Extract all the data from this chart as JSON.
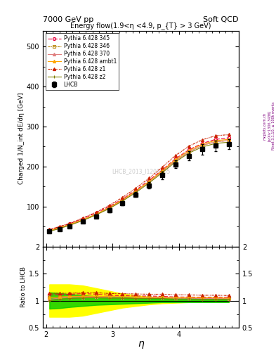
{
  "title_left": "7000 GeV pp",
  "title_right": "Soft QCD",
  "plot_title": "Energy flow(1.9<η <4.9, p_{T} > 3 GeV)",
  "xlabel": "η",
  "ylabel": "Charged 1/N_int dE/dη [GeV]",
  "ylabel_ratio": "Ratio to LHCB",
  "watermark": "LHCB_2013_I1208105",
  "rivet_label": "Rivet 3.1.10, ≥ 100k events",
  "arxiv_label": "[arXiv:1306.3436]",
  "mcplots_label": "mcplots.cern.ch",
  "eta": [
    2.05,
    2.2,
    2.35,
    2.55,
    2.75,
    2.95,
    3.15,
    3.35,
    3.55,
    3.75,
    3.95,
    4.15,
    4.35,
    4.55,
    4.75
  ],
  "lhcb_y": [
    38,
    44,
    51,
    62,
    75,
    91,
    109,
    130,
    153,
    178,
    206,
    227,
    243,
    252,
    256
  ],
  "lhcb_yerr": [
    2,
    2,
    2.5,
    3,
    3.5,
    4.5,
    5.5,
    6.5,
    7.5,
    9,
    10,
    11.5,
    12.5,
    13,
    13
  ],
  "pythia_345_y": [
    42,
    49,
    57,
    70,
    84,
    100,
    119,
    141,
    166,
    192,
    220,
    242,
    258,
    268,
    272
  ],
  "pythia_346_y": [
    40,
    47,
    55,
    67,
    81,
    97,
    116,
    138,
    162,
    188,
    215,
    237,
    253,
    262,
    265
  ],
  "pythia_370_y": [
    39,
    46,
    54,
    66,
    80,
    97,
    116,
    138,
    162,
    188,
    215,
    237,
    253,
    262,
    265
  ],
  "pythia_ambt1_y": [
    40,
    47,
    55,
    67,
    81,
    98,
    117,
    139,
    163,
    190,
    218,
    240,
    256,
    265,
    268
  ],
  "pythia_z1_y": [
    43,
    50,
    58,
    71,
    86,
    103,
    123,
    146,
    171,
    199,
    228,
    251,
    267,
    277,
    280
  ],
  "pythia_z2_y": [
    38,
    45,
    53,
    65,
    79,
    95,
    114,
    135,
    159,
    185,
    212,
    234,
    249,
    258,
    261
  ],
  "color_345": "#e8003d",
  "color_346": "#b8860b",
  "color_370": "#e08080",
  "color_ambt1": "#ffa500",
  "color_z1": "#cc2200",
  "color_z2": "#808000",
  "ylim_main": [
    0,
    540
  ],
  "ylim_ratio": [
    0.5,
    2.0
  ],
  "eta_lim": [
    1.95,
    4.9
  ],
  "yellow_band_low": [
    0.7,
    0.7,
    0.7,
    0.72,
    0.77,
    0.82,
    0.87,
    0.9,
    0.93,
    0.95,
    0.96,
    0.97,
    0.97,
    0.97,
    0.97
  ],
  "yellow_band_high": [
    1.3,
    1.3,
    1.3,
    1.28,
    1.23,
    1.18,
    1.13,
    1.1,
    1.07,
    1.05,
    1.04,
    1.03,
    1.03,
    1.03,
    1.03
  ],
  "green_band_low": [
    0.85,
    0.86,
    0.88,
    0.9,
    0.92,
    0.93,
    0.94,
    0.95,
    0.96,
    0.97,
    0.97,
    0.97,
    0.97,
    0.97,
    0.97
  ],
  "green_band_high": [
    1.15,
    1.14,
    1.12,
    1.1,
    1.08,
    1.07,
    1.06,
    1.05,
    1.04,
    1.03,
    1.03,
    1.03,
    1.03,
    1.03,
    1.03
  ]
}
